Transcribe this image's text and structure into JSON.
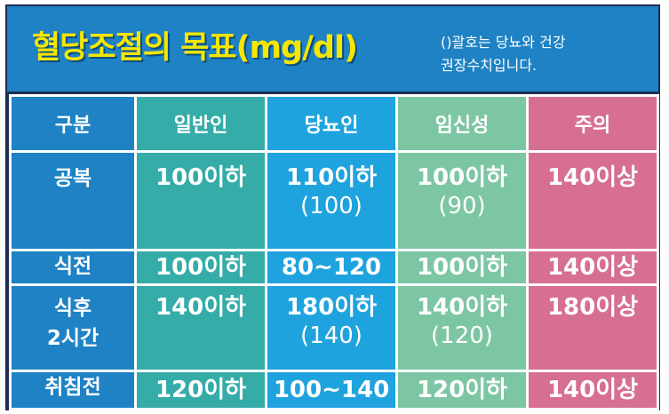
{
  "header": {
    "title": "혈당조절의 목표(mg/dl)",
    "note_line1": "()괄호는 당뇨와 건강",
    "note_line2": "권장수치입니다."
  },
  "table": {
    "columns": [
      "구분",
      "일반인",
      "당뇨인",
      "임신성",
      "주의"
    ],
    "rows": [
      {
        "label": "공복",
        "general": "100이하",
        "diabetes": "110이하",
        "diabetes_sub": "(100)",
        "pregnant": "100이하",
        "pregnant_sub": "(90)",
        "caution": "140이상"
      },
      {
        "label": "식전",
        "general": "100이하",
        "diabetes": "80~120",
        "pregnant": "100이하",
        "caution": "140이상"
      },
      {
        "label_line1": "식후",
        "label_line2": "2시간",
        "general": "140이하",
        "diabetes": "180이하",
        "diabetes_sub": "(140)",
        "pregnant": "140이하",
        "pregnant_sub": "(120)",
        "caution": "180이상"
      },
      {
        "label": "취침전",
        "general": "120이하",
        "diabetes": "100~140",
        "pregnant": "120이하",
        "caution": "140이상"
      }
    ]
  },
  "colors": {
    "header_bg": "#1e82c4",
    "title": "#f6e600",
    "general": "#35aca8",
    "diabetes": "#1fa3de",
    "pregnant": "#7dc6a4",
    "caution": "#d66f93"
  }
}
